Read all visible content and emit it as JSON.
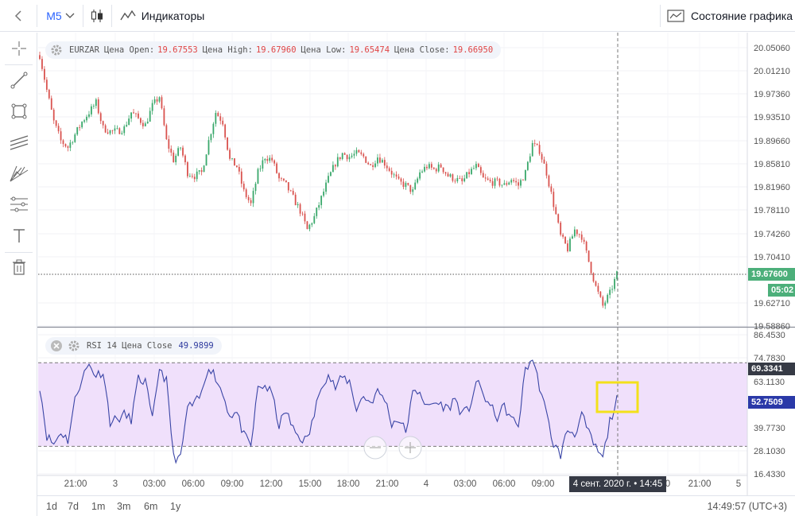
{
  "toolbar": {
    "interval": "M5",
    "indicators_label": "Индикаторы",
    "chart_state_label": "Состояние графика"
  },
  "main_legend": {
    "symbol": "EURZAR",
    "open_label": "Цена Open:",
    "open": "19.67553",
    "high_label": "Цена High:",
    "high": "19.67960",
    "low_label": "Цена Low:",
    "low": "19.65474",
    "close_label": "Цена Close:",
    "close": "19.66950"
  },
  "rsi_legend": {
    "label": "RSI 14 Цена Close",
    "value": "49.9899"
  },
  "price_tag": {
    "value": "19.67600",
    "countdown": "05:02",
    "color": "#4caf7a"
  },
  "rsi_tags": {
    "upper": "69.3341",
    "current": "52.7509",
    "upper_color": "#363a45",
    "current_color": "#2a39a8"
  },
  "crosshair_time": "4 сент. 2020 г. • 14:45",
  "ranges": [
    "1d",
    "7d",
    "1m",
    "3m",
    "6m",
    "1y"
  ],
  "clock": "14:49:57 (UTC+3)",
  "chart_data": [
    {
      "type": "candlestick",
      "symbol": "EURZAR",
      "ylim": [
        19.5886,
        20.0505
      ],
      "y_ticks": [
        "20.05060",
        "20.01210",
        "19.97360",
        "19.93510",
        "19.89660",
        "19.85810",
        "19.81960",
        "19.78110",
        "19.74260",
        "19.70410",
        "19.62710",
        "19.58860"
      ],
      "x_ticks": [
        "21:00",
        "3",
        "03:00",
        "06:00",
        "09:00",
        "12:00",
        "15:00",
        "18:00",
        "21:00",
        "4",
        "03:00",
        "06:00",
        "09:00",
        "0",
        "21:00",
        "5"
      ],
      "up_color": "#3aa86b",
      "down_color": "#d9534f",
      "close_path": [
        [
          0,
          20.015
        ],
        [
          3,
          19.96
        ],
        [
          6,
          19.91
        ],
        [
          9,
          19.88
        ],
        [
          12,
          19.87
        ],
        [
          15,
          19.89
        ],
        [
          18,
          19.91
        ],
        [
          21,
          19.925
        ],
        [
          24,
          19.94
        ],
        [
          27,
          19.9
        ],
        [
          30,
          19.895
        ],
        [
          33,
          19.895
        ],
        [
          36,
          19.9
        ],
        [
          39,
          19.925
        ],
        [
          42,
          19.915
        ],
        [
          45,
          19.905
        ],
        [
          48,
          19.935
        ],
        [
          51,
          19.95
        ],
        [
          54,
          19.88
        ],
        [
          57,
          19.85
        ],
        [
          60,
          19.87
        ],
        [
          63,
          19.83
        ],
        [
          66,
          19.825
        ],
        [
          69,
          19.83
        ],
        [
          72,
          19.88
        ],
        [
          75,
          19.925
        ],
        [
          78,
          19.91
        ],
        [
          81,
          19.85
        ],
        [
          84,
          19.84
        ],
        [
          87,
          19.8
        ],
        [
          90,
          19.78
        ],
        [
          93,
          19.83
        ],
        [
          96,
          19.855
        ],
        [
          99,
          19.85
        ],
        [
          102,
          19.82
        ],
        [
          105,
          19.81
        ],
        [
          108,
          19.79
        ],
        [
          111,
          19.77
        ],
        [
          114,
          19.74
        ],
        [
          117,
          19.76
        ],
        [
          120,
          19.79
        ],
        [
          123,
          19.82
        ],
        [
          126,
          19.845
        ],
        [
          129,
          19.86
        ],
        [
          132,
          19.855
        ],
        [
          135,
          19.86
        ],
        [
          138,
          19.855
        ],
        [
          141,
          19.84
        ],
        [
          144,
          19.855
        ],
        [
          147,
          19.845
        ],
        [
          150,
          19.83
        ],
        [
          153,
          19.815
        ],
        [
          156,
          19.81
        ],
        [
          159,
          19.8
        ],
        [
          162,
          19.83
        ],
        [
          165,
          19.84
        ],
        [
          168,
          19.835
        ],
        [
          171,
          19.84
        ],
        [
          174,
          19.825
        ],
        [
          177,
          19.82
        ],
        [
          180,
          19.815
        ],
        [
          183,
          19.83
        ],
        [
          186,
          19.84
        ],
        [
          189,
          19.82
        ],
        [
          192,
          19.815
        ],
        [
          195,
          19.815
        ],
        [
          198,
          19.81
        ],
        [
          201,
          19.82
        ],
        [
          204,
          19.81
        ],
        [
          207,
          19.83
        ],
        [
          210,
          19.875
        ],
        [
          213,
          19.865
        ],
        [
          216,
          19.83
        ],
        [
          219,
          19.78
        ],
        [
          222,
          19.73
        ],
        [
          225,
          19.71
        ],
        [
          228,
          19.74
        ],
        [
          231,
          19.73
        ],
        [
          234,
          19.69
        ],
        [
          237,
          19.65
        ],
        [
          240,
          19.62
        ],
        [
          243,
          19.64
        ],
        [
          246,
          19.67
        ]
      ]
    },
    {
      "type": "line",
      "indicator": "RSI 14",
      "ylim": [
        16.433,
        86.453
      ],
      "y_ticks": [
        "86.4530",
        "74.7830",
        "63.1130",
        "39.7730",
        "28.1030",
        "16.4330"
      ],
      "band": [
        30,
        70
      ],
      "band_color": "#f0e0fb",
      "line_color": "#3a45a6",
      "values": [
        [
          0,
          59
        ],
        [
          3,
          35
        ],
        [
          6,
          31
        ],
        [
          9,
          37
        ],
        [
          12,
          33
        ],
        [
          15,
          52
        ],
        [
          18,
          63
        ],
        [
          21,
          69
        ],
        [
          24,
          64
        ],
        [
          27,
          66
        ],
        [
          30,
          42
        ],
        [
          33,
          43
        ],
        [
          36,
          45
        ],
        [
          39,
          43
        ],
        [
          42,
          62
        ],
        [
          45,
          61
        ],
        [
          48,
          42
        ],
        [
          51,
          68
        ],
        [
          54,
          61
        ],
        [
          57,
          25
        ],
        [
          60,
          24
        ],
        [
          63,
          49
        ],
        [
          66,
          50
        ],
        [
          69,
          55
        ],
        [
          72,
          69
        ],
        [
          75,
          63
        ],
        [
          78,
          55
        ],
        [
          81,
          45
        ],
        [
          84,
          46
        ],
        [
          87,
          35
        ],
        [
          90,
          30
        ],
        [
          93,
          58
        ],
        [
          96,
          59
        ],
        [
          99,
          55
        ],
        [
          102,
          40
        ],
        [
          105,
          47
        ],
        [
          108,
          38
        ],
        [
          111,
          34
        ],
        [
          114,
          33
        ],
        [
          117,
          45
        ],
        [
          120,
          60
        ],
        [
          123,
          64
        ],
        [
          126,
          58
        ],
        [
          129,
          63
        ],
        [
          132,
          61
        ],
        [
          135,
          48
        ],
        [
          138,
          54
        ],
        [
          141,
          51
        ],
        [
          144,
          56
        ],
        [
          147,
          53
        ],
        [
          150,
          41
        ],
        [
          153,
          43
        ],
        [
          156,
          37
        ],
        [
          159,
          55
        ],
        [
          162,
          57
        ],
        [
          165,
          48
        ],
        [
          168,
          51
        ],
        [
          171,
          50
        ],
        [
          174,
          48
        ],
        [
          177,
          53
        ],
        [
          180,
          45
        ],
        [
          183,
          48
        ],
        [
          186,
          61
        ],
        [
          189,
          55
        ],
        [
          192,
          49
        ],
        [
          195,
          44
        ],
        [
          198,
          49
        ],
        [
          201,
          43
        ],
        [
          204,
          40
        ],
        [
          207,
          67
        ],
        [
          210,
          72
        ],
        [
          213,
          59
        ],
        [
          216,
          45
        ],
        [
          219,
          31
        ],
        [
          222,
          26
        ],
        [
          225,
          38
        ],
        [
          228,
          36
        ],
        [
          231,
          45
        ],
        [
          234,
          36
        ],
        [
          237,
          29
        ],
        [
          240,
          24
        ],
        [
          243,
          42
        ],
        [
          246,
          52
        ]
      ]
    }
  ]
}
